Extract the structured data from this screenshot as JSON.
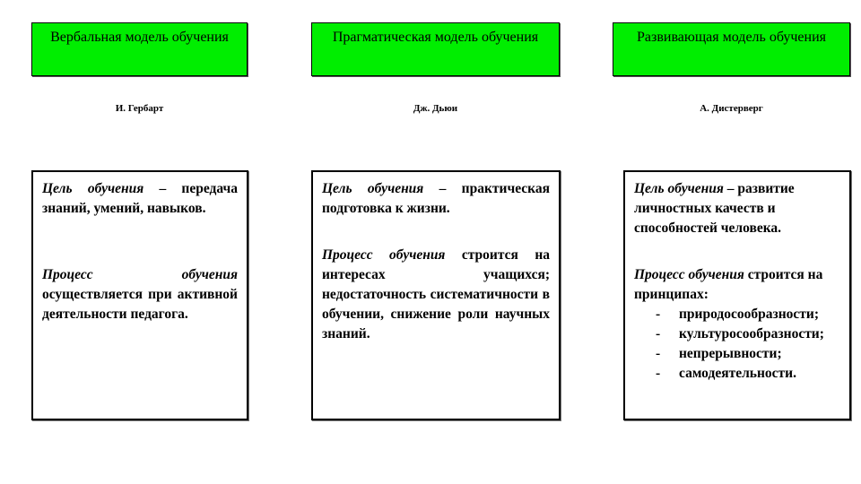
{
  "models": [
    {
      "title": "Вербальная модель обучения",
      "author": "И. Гербарт",
      "goal_label": "Цель обучения",
      "goal_text": " – передача знаний, умений, навыков.",
      "process_label": "Процесс обучения",
      "process_text": " осуществляется при активной деятельности педагога."
    },
    {
      "title": "Прагматическая модель обучения",
      "author": "Дж. Дьюи",
      "goal_label": "Цель обучения",
      "goal_text": " – практическая подготовка к жизни.",
      "process_label": "Процесс обучения",
      "process_text": " строится на интересах учащихся; недостаточность систематичности в обучении, снижение роли научных знаний."
    },
    {
      "title": "Развивающая модель обучения",
      "author": "А. Дистерверг",
      "goal_label": "Цель обучения",
      "goal_text": " – развитие личностных качеств и способностей человека.",
      "process_label": "Процесс обучения",
      "process_text": " строится на принципах:",
      "principles": [
        "природосообразности;",
        "культуросообразности;",
        "непрерывности;",
        "самодеятельности."
      ]
    }
  ],
  "colors": {
    "header_bg": "#00ee00"
  }
}
